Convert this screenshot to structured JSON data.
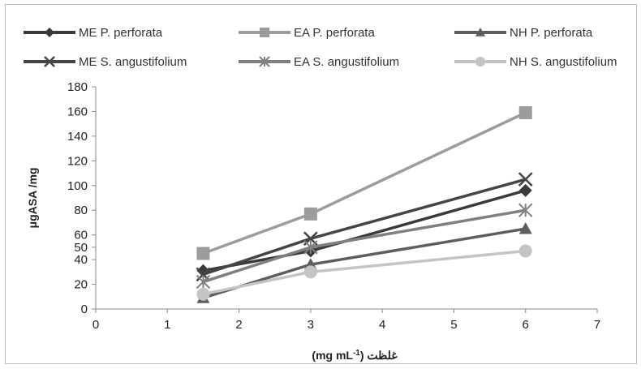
{
  "chart_data": {
    "type": "line",
    "title": "",
    "xlabel": "غلظت (mg mL-1)",
    "xlabel_parts": {
      "main": "غلظت (mg mL",
      "sup": "-1",
      "close": ")"
    },
    "ylabel": "μgASA /mg",
    "xlim": [
      0,
      7
    ],
    "ylim": [
      0,
      180
    ],
    "x_ticks": [
      0,
      1,
      2,
      3,
      4,
      5,
      6,
      7
    ],
    "y_ticks": [
      0,
      20,
      40,
      50,
      60,
      80,
      100,
      120,
      140,
      160,
      180
    ],
    "grid": false,
    "legend_position": "top",
    "series": [
      {
        "name": "ME P. perforata",
        "x": [
          1.5,
          3,
          6
        ],
        "y": [
          31,
          47,
          96
        ],
        "color": "#3a3a3a",
        "marker": "diamond"
      },
      {
        "name": "EA P. perforata",
        "x": [
          1.5,
          3,
          6
        ],
        "y": [
          45,
          77,
          159
        ],
        "color": "#9c9c9c",
        "marker": "square"
      },
      {
        "name": "NH P. perforata",
        "x": [
          1.5,
          3,
          6
        ],
        "y": [
          9,
          36,
          65
        ],
        "color": "#5e5e5e",
        "marker": "triangle"
      },
      {
        "name": "ME S. angustifolium",
        "x": [
          1.5,
          3,
          6
        ],
        "y": [
          28,
          57,
          105
        ],
        "color": "#454545",
        "marker": "x"
      },
      {
        "name": "EA S. angustifolium",
        "x": [
          1.5,
          3,
          6
        ],
        "y": [
          22,
          50,
          80
        ],
        "color": "#808080",
        "marker": "star"
      },
      {
        "name": "NH S. angustifolium",
        "x": [
          1.5,
          3,
          6
        ],
        "y": [
          12,
          30,
          47
        ],
        "color": "#c4c4c4",
        "marker": "circle"
      }
    ]
  }
}
